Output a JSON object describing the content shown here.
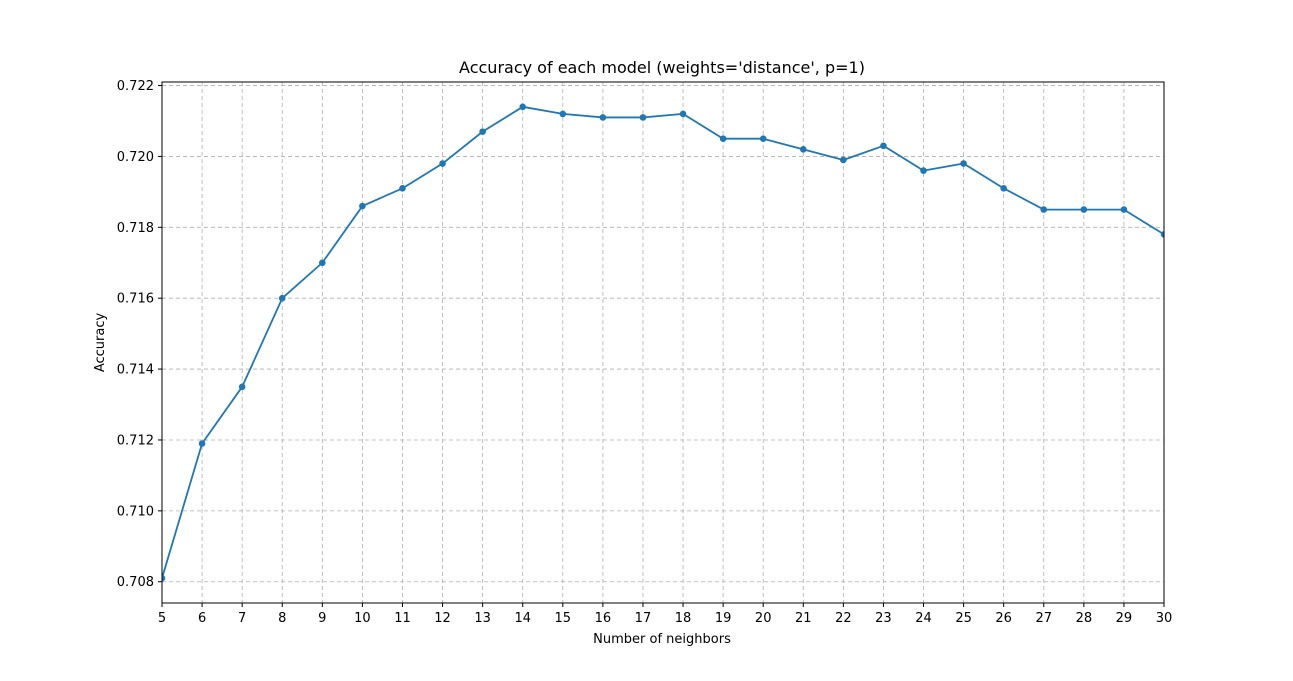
{
  "chart_data": {
    "type": "line",
    "title": "Accuracy of each model (weights='distance', p=1)",
    "xlabel": "Number of neighbors",
    "ylabel": "Accuracy",
    "xlim": [
      5,
      30
    ],
    "ylim": [
      0.7074,
      0.7221
    ],
    "x": [
      5,
      6,
      7,
      8,
      9,
      10,
      11,
      12,
      13,
      14,
      15,
      16,
      17,
      18,
      19,
      20,
      21,
      22,
      23,
      24,
      25,
      26,
      27,
      28,
      29,
      30
    ],
    "series": [
      {
        "values": [
          0.7081,
          0.7119,
          0.7135,
          0.716,
          0.717,
          0.7186,
          0.7191,
          0.7198,
          0.7207,
          0.7214,
          0.7212,
          0.7211,
          0.7211,
          0.7212,
          0.7205,
          0.7205,
          0.7202,
          0.7199,
          0.7203,
          0.7196,
          0.7198,
          0.7191,
          0.7185,
          0.7185,
          0.7185,
          0.7178
        ],
        "color": "#1f77b4"
      }
    ],
    "x_ticks": [
      "5",
      "6",
      "7",
      "8",
      "9",
      "10",
      "11",
      "12",
      "13",
      "14",
      "15",
      "16",
      "17",
      "18",
      "19",
      "20",
      "21",
      "22",
      "23",
      "24",
      "25",
      "26",
      "27",
      "28",
      "29",
      "30"
    ],
    "y_ticks": [
      {
        "value": 0.708,
        "label": "0.708"
      },
      {
        "value": 0.71,
        "label": "0.710"
      },
      {
        "value": 0.712,
        "label": "0.712"
      },
      {
        "value": 0.714,
        "label": "0.714"
      },
      {
        "value": 0.716,
        "label": "0.716"
      },
      {
        "value": 0.718,
        "label": "0.718"
      },
      {
        "value": 0.72,
        "label": "0.720"
      },
      {
        "value": 0.722,
        "label": "0.722"
      }
    ],
    "grid": true,
    "markers": "circle"
  }
}
